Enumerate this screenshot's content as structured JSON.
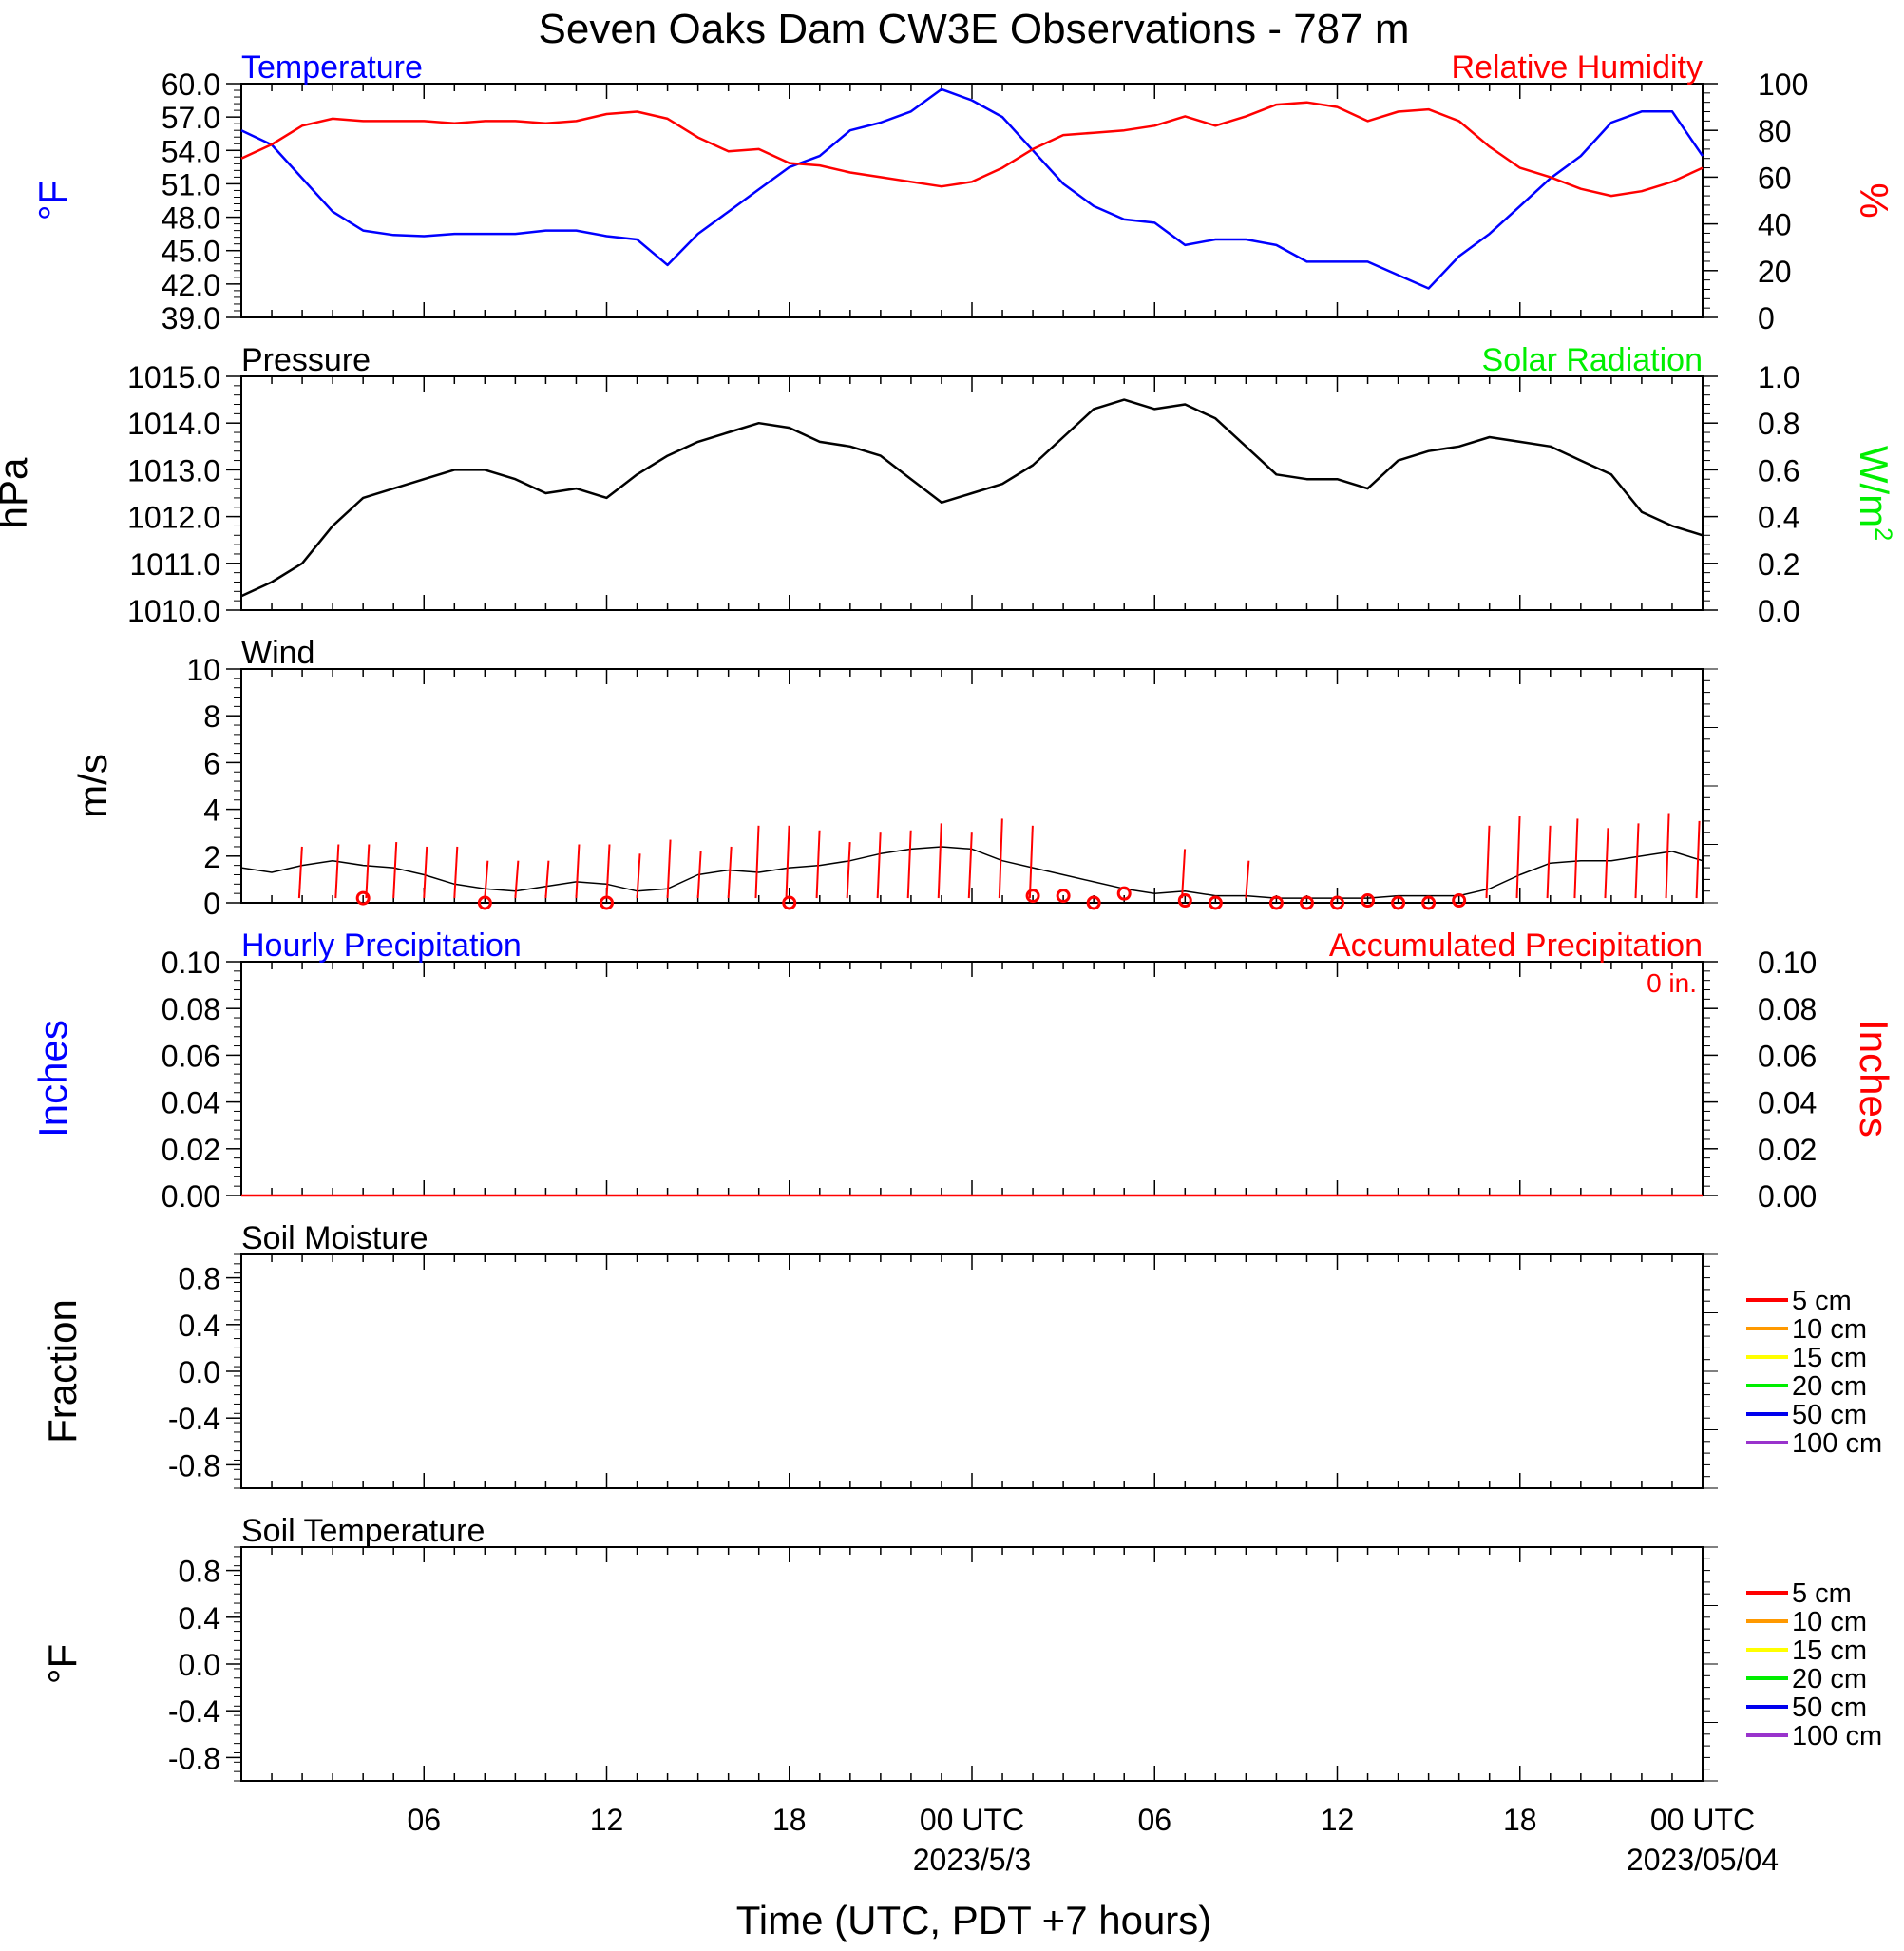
{
  "title": "Seven Oaks Dam CW3E Observations - 787 m",
  "time_axis": {
    "tick_labels": [
      "06",
      "12",
      "18",
      "00 UTC",
      "06",
      "12",
      "18",
      "00 UTC"
    ],
    "date_labels": [
      "2023/5/3",
      "2023/05/04"
    ],
    "xlabel": "Time (UTC, PDT +7 hours)"
  },
  "colors": {
    "temperature": "#0000ff",
    "humidity": "#ff0000",
    "pressure": "#000000",
    "solar": "#00ee00",
    "wind_line": "#000000",
    "wind_gust": "#ff0000",
    "precip_hourly": "#0000ff",
    "precip_accum": "#ff0000",
    "soil_5": "#ff0000",
    "soil_10": "#ff9900",
    "soil_15": "#ffff00",
    "soil_20": "#00ee00",
    "soil_50": "#0000ee",
    "soil_100": "#9933cc"
  },
  "chart_data": [
    {
      "id": "temp_rh",
      "type": "line",
      "title_left": "Temperature",
      "title_right": "Relative Humidity",
      "ylabel_left": "°F",
      "ylabel_right": "%",
      "ylim_left": [
        39,
        60
      ],
      "ylim_right": [
        0,
        100
      ],
      "yticks_left": [
        "60.0",
        "57.0",
        "54.0",
        "51.0",
        "48.0",
        "45.0",
        "42.0",
        "39.0"
      ],
      "yticks_right": [
        "100",
        "80",
        "60",
        "40",
        "20",
        "0"
      ],
      "x_hours": [
        0,
        1,
        2,
        3,
        4,
        5,
        6,
        7,
        8,
        9,
        10,
        11,
        12,
        13,
        14,
        15,
        16,
        17,
        18,
        19,
        20,
        21,
        22,
        23,
        24,
        25,
        26,
        27,
        28,
        29,
        30,
        31,
        32,
        33,
        34,
        35,
        36,
        37,
        38,
        39,
        40,
        41,
        42,
        43,
        44,
        45,
        46,
        47,
        48
      ],
      "series": [
        {
          "name": "Temperature",
          "axis": "left",
          "color_key": "temperature",
          "values": [
            55.8,
            54.5,
            51.5,
            48.5,
            46.8,
            46.4,
            46.3,
            46.5,
            46.5,
            46.5,
            46.8,
            46.8,
            46.3,
            46.0,
            43.7,
            46.5,
            48.5,
            50.5,
            52.5,
            53.5,
            55.8,
            56.5,
            57.5,
            59.5,
            58.5,
            57.0,
            54.0,
            51.0,
            49.0,
            47.8,
            47.5,
            45.5,
            46.0,
            46.0,
            45.5,
            44.0,
            44.0,
            44.0,
            42.8,
            41.6,
            44.5,
            46.5,
            49.0,
            51.5,
            53.5,
            56.5,
            57.5,
            57.5,
            53.5
          ]
        },
        {
          "name": "Relative Humidity",
          "axis": "right",
          "color_key": "humidity",
          "values": [
            68,
            74,
            82,
            85,
            84,
            84,
            84,
            83,
            84,
            84,
            83,
            84,
            87,
            88,
            85,
            77,
            71,
            72,
            66,
            65,
            62,
            60,
            58,
            56,
            58,
            64,
            72,
            78,
            79,
            80,
            82,
            86,
            82,
            86,
            91,
            92,
            90,
            84,
            88,
            89,
            84,
            73,
            64,
            60,
            55,
            52,
            54,
            58,
            64
          ]
        }
      ]
    },
    {
      "id": "pressure_solar",
      "type": "line",
      "title_left": "Pressure",
      "title_right": "Solar Radiation",
      "ylabel_left": "hPa",
      "ylabel_right": "W/m",
      "ylabel_right_sup": "2",
      "ylim_left": [
        1010,
        1015
      ],
      "ylim_right": [
        0,
        1
      ],
      "yticks_left": [
        "1015.0",
        "1014.0",
        "1013.0",
        "1012.0",
        "1011.0",
        "1010.0"
      ],
      "yticks_right": [
        "1.0",
        "0.8",
        "0.6",
        "0.4",
        "0.2",
        "0.0"
      ],
      "x_hours": [
        0,
        1,
        2,
        3,
        4,
        5,
        6,
        7,
        8,
        9,
        10,
        11,
        12,
        13,
        14,
        15,
        16,
        17,
        18,
        19,
        20,
        21,
        22,
        23,
        24,
        25,
        26,
        27,
        28,
        29,
        30,
        31,
        32,
        33,
        34,
        35,
        36,
        37,
        38,
        39,
        40,
        41,
        42,
        43,
        44,
        45,
        46,
        47,
        48
      ],
      "series": [
        {
          "name": "Pressure",
          "axis": "left",
          "color_key": "pressure",
          "values": [
            1010.3,
            1010.6,
            1011.0,
            1011.8,
            1012.4,
            1012.6,
            1012.8,
            1013.0,
            1013.0,
            1012.8,
            1012.5,
            1012.6,
            1012.4,
            1012.9,
            1013.3,
            1013.6,
            1013.8,
            1014.0,
            1013.9,
            1013.6,
            1013.5,
            1013.3,
            1012.8,
            1012.3,
            1012.5,
            1012.7,
            1013.1,
            1013.7,
            1014.3,
            1014.5,
            1014.3,
            1014.4,
            1014.1,
            1013.5,
            1012.9,
            1012.8,
            1012.8,
            1012.6,
            1013.2,
            1013.4,
            1013.5,
            1013.7,
            1013.6,
            1013.5,
            1013.2,
            1012.9,
            1012.1,
            1011.8,
            1011.6
          ]
        }
      ]
    },
    {
      "id": "wind",
      "type": "line",
      "title_left": "Wind",
      "ylabel_left": "m/s",
      "ylim_left": [
        0,
        10
      ],
      "yticks_left": [
        "10",
        "8",
        "6",
        "4",
        "2",
        "0"
      ],
      "x_hours": [
        0,
        1,
        2,
        3,
        4,
        5,
        6,
        7,
        8,
        9,
        10,
        11,
        12,
        13,
        14,
        15,
        16,
        17,
        18,
        19,
        20,
        21,
        22,
        23,
        24,
        25,
        26,
        27,
        28,
        29,
        30,
        31,
        32,
        33,
        34,
        35,
        36,
        37,
        38,
        39,
        40,
        41,
        42,
        43,
        44,
        45,
        46,
        47,
        48
      ],
      "series": [
        {
          "name": "Wind",
          "axis": "left",
          "color_key": "wind_line",
          "values": [
            1.5,
            1.3,
            1.6,
            1.8,
            1.6,
            1.5,
            1.2,
            0.8,
            0.6,
            0.5,
            0.7,
            0.9,
            0.8,
            0.5,
            0.6,
            1.2,
            1.4,
            1.3,
            1.5,
            1.6,
            1.8,
            2.1,
            2.3,
            2.4,
            2.3,
            1.8,
            1.5,
            1.2,
            0.9,
            0.6,
            0.4,
            0.5,
            0.3,
            0.3,
            0.2,
            0.2,
            0.2,
            0.2,
            0.3,
            0.3,
            0.3,
            0.6,
            1.2,
            1.7,
            1.8,
            1.8,
            2.0,
            2.2,
            1.8
          ]
        }
      ],
      "gust_hours": [
        1.9,
        3.1,
        4.1,
        5.0,
        6.0,
        7.0,
        8.0,
        9.0,
        10.0,
        11.0,
        12.0,
        13.0,
        14.0,
        15.0,
        16.0,
        16.9,
        17.9,
        18.9,
        19.9,
        20.9,
        21.9,
        22.9,
        23.9,
        24.9,
        25.9,
        30.9,
        33.0,
        40.9,
        41.9,
        42.9,
        43.8,
        44.8,
        45.8,
        46.8,
        47.8
      ],
      "gust_values": [
        2.4,
        2.5,
        2.5,
        2.6,
        2.4,
        2.4,
        1.8,
        1.8,
        1.8,
        2.5,
        2.5,
        2.1,
        2.7,
        2.2,
        2.4,
        3.3,
        3.3,
        3.1,
        2.6,
        3.0,
        3.1,
        3.4,
        3.0,
        3.6,
        3.3,
        2.3,
        1.8,
        3.3,
        3.7,
        3.3,
        3.6,
        3.2,
        3.4,
        3.8,
        3.5
      ],
      "calm_hours": [
        4,
        8,
        12,
        18,
        26,
        27,
        28,
        29,
        31,
        32,
        34,
        35,
        36,
        37,
        38,
        39,
        40
      ],
      "calm_values": [
        0.2,
        0.0,
        0.0,
        0.0,
        0.3,
        0.3,
        0.0,
        0.4,
        0.1,
        0.0,
        0.0,
        0.0,
        0.0,
        0.1,
        0.0,
        0.0,
        0.1
      ]
    },
    {
      "id": "precip",
      "type": "line",
      "title_left": "Hourly Precipitation",
      "title_right": "Accumulated Precipitation",
      "annotation": "0 in.",
      "ylabel_left": "Inches",
      "ylabel_right": "Inches",
      "ylim_left": [
        0,
        0.1
      ],
      "ylim_right": [
        0,
        0.1
      ],
      "yticks_left": [
        "0.10",
        "0.08",
        "0.06",
        "0.04",
        "0.02",
        "0.00"
      ],
      "yticks_right": [
        "0.10",
        "0.08",
        "0.06",
        "0.04",
        "0.02",
        "0.00"
      ],
      "x_hours": [
        0,
        48
      ],
      "series": [
        {
          "name": "Accumulated Precipitation",
          "axis": "right",
          "color_key": "precip_accum",
          "values": [
            0,
            0
          ]
        }
      ]
    },
    {
      "id": "soil_moisture",
      "type": "line",
      "title_left": "Soil Moisture",
      "ylabel_left": "Fraction",
      "ylim_left": [
        -1.0,
        1.0
      ],
      "yticks_left": [
        "0.8",
        "0.4",
        "0.0",
        "-0.4",
        "-0.8"
      ],
      "legend": [
        "5 cm",
        "10 cm",
        "15 cm",
        "20 cm",
        "50 cm",
        "100 cm"
      ],
      "series": []
    },
    {
      "id": "soil_temperature",
      "type": "line",
      "title_left": "Soil Temperature",
      "ylabel_left": "°F",
      "ylim_left": [
        -1.0,
        1.0
      ],
      "yticks_left": [
        "0.8",
        "0.4",
        "0.0",
        "-0.4",
        "-0.8"
      ],
      "legend": [
        "5 cm",
        "10 cm",
        "15 cm",
        "20 cm",
        "50 cm",
        "100 cm"
      ],
      "series": []
    }
  ]
}
